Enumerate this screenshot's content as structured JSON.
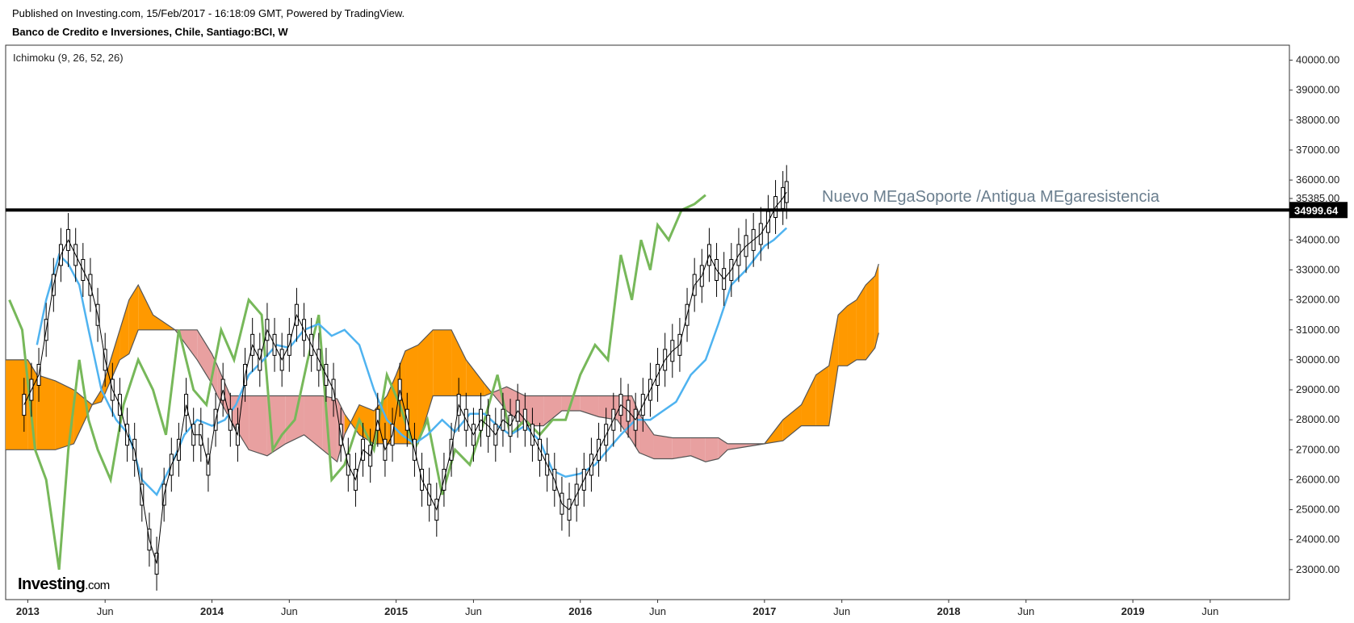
{
  "header": {
    "published": "Published on Investing.com, 15/Feb/2017 - 16:18:09 GMT, Powered by TradingView.",
    "symbol": "Banco de Credito e Inversiones, Chile, Santiago:BCI, W"
  },
  "logo": {
    "brand": "Investing",
    "suffix": ".com"
  },
  "chart_data": {
    "type": "line",
    "indicator_label": "Ichimoku (9, 26, 52, 26)",
    "annotation": "Nuevo MEgaSoporte /Antigua MEgaresistencia",
    "ylim": [
      22000,
      40500
    ],
    "y_ticks": [
      "40000.00",
      "39000.00",
      "38000.00",
      "37000.00",
      "36000.00",
      "35385.00",
      "34000.00",
      "33000.00",
      "32000.00",
      "31000.00",
      "30000.00",
      "29000.00",
      "28000.00",
      "27000.00",
      "26000.00",
      "25000.00",
      "24000.00",
      "23000.00"
    ],
    "x_ticks": [
      "2013",
      "Jun",
      "2014",
      "Jun",
      "2015",
      "Jun",
      "2016",
      "Jun",
      "2017",
      "Jun",
      "2018",
      "Jun",
      "2019",
      "Jun"
    ],
    "x_ticks_bold": [
      true,
      false,
      true,
      false,
      true,
      false,
      true,
      false,
      true,
      false,
      true,
      false,
      true,
      false
    ],
    "last_price_label": "34999.64",
    "horizontal_line": 35000,
    "colors": {
      "price": "#000000",
      "tenkan": "#4fb3f0",
      "chikou": "#77b85a",
      "kumo_bull": "#ff9900",
      "kumo_bear": "#e8a0a0",
      "annotation": "#6b7f8f"
    },
    "series": [
      {
        "name": "chikou",
        "x": [
          2012.9,
          2012.97,
          2013.04,
          2013.1,
          2013.17,
          2013.22,
          2013.28,
          2013.33,
          2013.38,
          2013.45,
          2013.52,
          2013.6,
          2013.68,
          2013.75,
          2013.82,
          2013.9,
          2013.97,
          2014.05,
          2014.12,
          2014.2,
          2014.27,
          2014.33,
          2014.38,
          2014.45,
          2014.52,
          2014.58,
          2014.65,
          2014.72,
          2014.8,
          2014.88,
          2014.95,
          2015.02,
          2015.1,
          2015.17,
          2015.25,
          2015.32,
          2015.4,
          2015.48,
          2015.55,
          2015.62,
          2015.7,
          2015.78,
          2015.85,
          2015.92,
          2016.0,
          2016.08,
          2016.15,
          2016.22,
          2016.28,
          2016.33,
          2016.38,
          2016.42,
          2016.48,
          2016.55,
          2016.62,
          2016.68
        ],
        "values": [
          32000,
          31000,
          27000,
          26000,
          23000,
          27000,
          30000,
          28000,
          27000,
          26000,
          28500,
          30000,
          29000,
          27500,
          31000,
          29000,
          28500,
          31000,
          30000,
          32000,
          31500,
          27000,
          27500,
          28000,
          30000,
          31500,
          26000,
          26500,
          28000,
          27000,
          29500,
          28500,
          27000,
          28000,
          25500,
          27000,
          26500,
          28000,
          29500,
          27500,
          28000,
          27500,
          28000,
          28000,
          29500,
          30500,
          30000,
          33500,
          32000,
          34000,
          33000,
          34500,
          34000,
          35000,
          35200,
          35500
        ]
      },
      {
        "name": "tenkan",
        "x": [
          2013.05,
          2013.1,
          2013.17,
          2013.22,
          2013.28,
          2013.33,
          2013.4,
          2013.48,
          2013.55,
          2013.62,
          2013.7,
          2013.78,
          2013.85,
          2013.92,
          2014.0,
          2014.07,
          2014.13,
          2014.2,
          2014.28,
          2014.35,
          2014.42,
          2014.5,
          2014.58,
          2014.65,
          2014.72,
          2014.8,
          2014.88,
          2014.95,
          2015.03,
          2015.1,
          2015.17,
          2015.25,
          2015.32,
          2015.4,
          2015.48,
          2015.55,
          2015.62,
          2015.7,
          2015.78,
          2015.85,
          2015.92,
          2016.0,
          2016.08,
          2016.15,
          2016.22,
          2016.3,
          2016.38,
          2016.45,
          2016.52,
          2016.6,
          2016.68,
          2016.75,
          2016.82,
          2016.9,
          2017.0,
          2017.05,
          2017.12
        ],
        "values": [
          30500,
          32000,
          33500,
          33200,
          32500,
          31000,
          29000,
          28000,
          27500,
          26000,
          25500,
          26500,
          27500,
          28000,
          27800,
          28000,
          28500,
          29500,
          30000,
          30500,
          30400,
          31000,
          31200,
          30800,
          31000,
          30500,
          29000,
          28000,
          27500,
          27200,
          27500,
          28000,
          27600,
          28200,
          28200,
          27800,
          27500,
          27800,
          27300,
          26300,
          26100,
          26200,
          26500,
          27000,
          27500,
          28000,
          28000,
          28300,
          28600,
          29500,
          30000,
          31200,
          32500,
          33000,
          33800,
          34000,
          34400
        ]
      },
      {
        "name": "price",
        "x": [
          2012.98,
          2013.02,
          2013.06,
          2013.1,
          2013.14,
          2013.18,
          2013.22,
          2013.26,
          2013.3,
          2013.34,
          2013.38,
          2013.42,
          2013.46,
          2013.5,
          2013.54,
          2013.58,
          2013.62,
          2013.66,
          2013.7,
          2013.74,
          2013.78,
          2013.82,
          2013.86,
          2013.9,
          2013.94,
          2013.98,
          2014.02,
          2014.06,
          2014.1,
          2014.14,
          2014.18,
          2014.22,
          2014.26,
          2014.3,
          2014.34,
          2014.38,
          2014.42,
          2014.46,
          2014.5,
          2014.54,
          2014.58,
          2014.62,
          2014.66,
          2014.7,
          2014.74,
          2014.78,
          2014.82,
          2014.86,
          2014.9,
          2014.94,
          2014.98,
          2015.02,
          2015.06,
          2015.1,
          2015.14,
          2015.18,
          2015.22,
          2015.26,
          2015.3,
          2015.34,
          2015.38,
          2015.42,
          2015.46,
          2015.5,
          2015.54,
          2015.58,
          2015.62,
          2015.66,
          2015.7,
          2015.74,
          2015.78,
          2015.82,
          2015.86,
          2015.9,
          2015.94,
          2015.98,
          2016.02,
          2016.06,
          2016.1,
          2016.14,
          2016.18,
          2016.22,
          2016.26,
          2016.3,
          2016.34,
          2016.38,
          2016.42,
          2016.46,
          2016.5,
          2016.54,
          2016.58,
          2016.62,
          2016.66,
          2016.7,
          2016.74,
          2016.78,
          2016.82,
          2016.86,
          2016.9,
          2016.94,
          2016.98,
          2017.02,
          2017.06,
          2017.1,
          2017.12
        ],
        "values": [
          28500,
          29000,
          29500,
          31000,
          32500,
          33500,
          34000,
          33500,
          33000,
          32500,
          31500,
          30000,
          29000,
          28500,
          27500,
          27000,
          25500,
          24000,
          23200,
          25500,
          26500,
          27000,
          28500,
          27500,
          27500,
          26500,
          28000,
          29000,
          28000,
          27500,
          29500,
          30500,
          30000,
          31000,
          30500,
          30000,
          30500,
          31500,
          31000,
          30500,
          30000,
          29500,
          29000,
          27500,
          26500,
          26000,
          27000,
          26800,
          28000,
          27000,
          27500,
          29000,
          28000,
          27000,
          26000,
          25500,
          25000,
          26000,
          27000,
          28500,
          28000,
          27500,
          28000,
          27800,
          27500,
          28000,
          27800,
          28300,
          28000,
          27500,
          27000,
          26500,
          26000,
          25200,
          25000,
          25500,
          26000,
          26500,
          27000,
          27500,
          28000,
          28500,
          28300,
          28000,
          28500,
          29000,
          29500,
          30000,
          30300,
          30500,
          31500,
          32500,
          32800,
          33500,
          33000,
          32700,
          33000,
          33500,
          33800,
          34000,
          34200,
          34600,
          35100,
          35400,
          35600
        ]
      },
      {
        "name": "senkou_a",
        "x": [
          2012.88,
          2013.0,
          2013.05,
          2013.15,
          2013.25,
          2013.35,
          2013.4,
          2013.5,
          2013.55,
          2013.6,
          2013.68,
          2013.8,
          2013.92,
          2014.0,
          2014.03,
          2014.1,
          2014.2,
          2014.3,
          2014.4,
          2014.5,
          2014.6,
          2014.68,
          2014.72,
          2014.8,
          2014.88,
          2014.95,
          2015.0,
          2015.05,
          2015.12,
          2015.2,
          2015.3,
          2015.38,
          2015.48,
          2015.52,
          2015.6,
          2015.7,
          2015.8,
          2015.9,
          2016.0,
          2016.1,
          2016.2,
          2016.28,
          2016.32,
          2016.4,
          2016.5,
          2016.6,
          2016.68,
          2016.75,
          2016.8,
          2016.9,
          2017.0,
          2017.1,
          2017.2,
          2017.28,
          2017.35,
          2017.4,
          2017.45,
          2017.5,
          2017.55,
          2017.6,
          2017.62
        ],
        "values": [
          30000,
          30000,
          29500,
          29300,
          29000,
          28500,
          29000,
          31000,
          32000,
          32500,
          31500,
          31000,
          30000,
          29200,
          28800,
          28000,
          27000,
          26800,
          27200,
          27500,
          27000,
          26600,
          27500,
          28500,
          28300,
          28800,
          29500,
          30300,
          30500,
          31000,
          31000,
          30000,
          29200,
          28900,
          28300,
          27800,
          27800,
          28300,
          28300,
          28100,
          28000,
          27300,
          26900,
          26700,
          26700,
          26800,
          26600,
          26700,
          27000,
          27100,
          27200,
          28000,
          28500,
          29500,
          29800,
          31500,
          31800,
          32000,
          32500,
          32800,
          33200
        ]
      },
      {
        "name": "senkou_b",
        "x": [
          2012.88,
          2013.0,
          2013.05,
          2013.15,
          2013.25,
          2013.35,
          2013.4,
          2013.5,
          2013.55,
          2013.6,
          2013.68,
          2013.8,
          2013.92,
          2014.0,
          2014.03,
          2014.1,
          2014.2,
          2014.3,
          2014.4,
          2014.5,
          2014.6,
          2014.68,
          2014.72,
          2014.8,
          2014.88,
          2014.95,
          2015.0,
          2015.05,
          2015.12,
          2015.2,
          2015.3,
          2015.38,
          2015.48,
          2015.52,
          2015.6,
          2015.7,
          2015.8,
          2015.9,
          2016.0,
          2016.1,
          2016.2,
          2016.28,
          2016.32,
          2016.4,
          2016.5,
          2016.6,
          2016.68,
          2016.75,
          2016.8,
          2016.9,
          2017.0,
          2017.1,
          2017.2,
          2017.28,
          2017.35,
          2017.4,
          2017.45,
          2017.5,
          2017.55,
          2017.6,
          2017.62
        ],
        "values": [
          27000,
          27000,
          27000,
          27000,
          27200,
          28500,
          28600,
          30000,
          30200,
          31000,
          31000,
          31000,
          31000,
          30200,
          29800,
          28800,
          28800,
          28800,
          28800,
          28800,
          28800,
          28700,
          28200,
          27500,
          27200,
          27200,
          27200,
          27200,
          27200,
          28800,
          28800,
          28800,
          28800,
          28900,
          29100,
          28800,
          28800,
          28800,
          28800,
          28800,
          28800,
          28800,
          28200,
          27500,
          27400,
          27400,
          27400,
          27400,
          27200,
          27200,
          27200,
          27300,
          27800,
          27800,
          27800,
          29800,
          29800,
          30000,
          30000,
          30400,
          30900
        ]
      }
    ]
  }
}
